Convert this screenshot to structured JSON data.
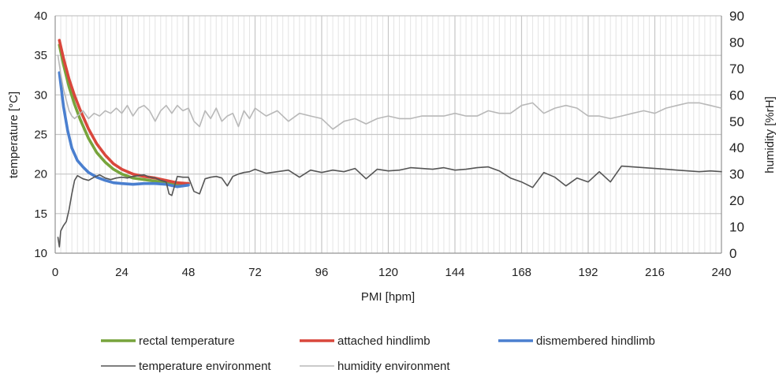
{
  "chart_data": {
    "type": "line",
    "xlabel": "PMI [hpm]",
    "ylabel": "temperature [°C]",
    "y2label": "humidity [%rH]",
    "xlim": [
      0,
      240
    ],
    "ylim": [
      10,
      40
    ],
    "y2lim": [
      0,
      90
    ],
    "xticks": [
      0,
      24,
      48,
      72,
      96,
      120,
      144,
      168,
      192,
      216,
      240
    ],
    "yticks": [
      10,
      15,
      20,
      25,
      30,
      35,
      40
    ],
    "y2ticks": [
      0,
      10,
      20,
      30,
      40,
      50,
      60,
      70,
      80,
      90
    ],
    "grid": "major gridlines plus dense minor vertical gridlines",
    "legend_position": "bottom",
    "series": [
      {
        "name": "rectal temperature",
        "color": "#77a43c",
        "axis": "left",
        "x": [
          1.5,
          3,
          5,
          7,
          9,
          12,
          15,
          18,
          21,
          24,
          28,
          32,
          36,
          40,
          44,
          48
        ],
        "y": [
          36.3,
          33.8,
          31.0,
          28.8,
          26.9,
          24.5,
          22.7,
          21.5,
          20.6,
          20.0,
          19.5,
          19.3,
          19.1,
          18.9,
          18.7,
          18.8
        ]
      },
      {
        "name": "attached hindlimb",
        "color": "#d9473c",
        "axis": "left",
        "x": [
          1.5,
          3,
          5,
          7,
          9,
          12,
          15,
          18,
          21,
          24,
          28,
          32,
          36,
          40,
          44,
          48
        ],
        "y": [
          36.9,
          34.6,
          32.0,
          29.9,
          28.1,
          25.7,
          23.8,
          22.4,
          21.3,
          20.6,
          20.0,
          19.7,
          19.5,
          19.2,
          18.9,
          18.8
        ]
      },
      {
        "name": "dismembered hindlimb",
        "color": "#4a7fcf",
        "axis": "left",
        "x": [
          1.5,
          3,
          4.5,
          6,
          8,
          10,
          12,
          15,
          18,
          21,
          24,
          28,
          32,
          36,
          40,
          44,
          48
        ],
        "y": [
          32.8,
          28.5,
          25.5,
          23.3,
          21.7,
          20.9,
          20.2,
          19.6,
          19.2,
          18.9,
          18.8,
          18.7,
          18.8,
          18.8,
          18.7,
          18.4,
          18.6
        ]
      },
      {
        "name": "temperature environment",
        "color": "#555555",
        "axis": "left",
        "x": [
          1,
          1.5,
          2,
          3,
          4,
          5,
          6,
          7,
          8,
          10,
          12,
          14,
          16,
          18,
          20,
          22,
          24,
          26,
          28,
          30,
          32,
          34,
          36,
          38,
          40,
          41,
          42,
          43,
          44,
          46,
          48,
          50,
          52,
          54,
          56,
          58,
          60,
          62,
          64,
          66,
          68,
          70,
          72,
          76,
          80,
          84,
          88,
          92,
          96,
          100,
          104,
          108,
          112,
          116,
          120,
          124,
          128,
          132,
          136,
          140,
          144,
          148,
          152,
          156,
          160,
          164,
          168,
          172,
          176,
          180,
          184,
          188,
          192,
          196,
          200,
          204,
          208,
          212,
          216,
          220,
          224,
          228,
          232,
          236,
          240
        ],
        "y": [
          12.0,
          10.8,
          12.8,
          13.5,
          14.0,
          15.5,
          17.5,
          19.2,
          19.8,
          19.4,
          19.2,
          19.6,
          19.9,
          19.5,
          19.3,
          19.5,
          19.6,
          19.5,
          19.7,
          19.8,
          19.9,
          19.6,
          19.5,
          19.2,
          19.0,
          17.5,
          17.3,
          18.5,
          19.7,
          19.6,
          19.6,
          17.8,
          17.5,
          19.4,
          19.6,
          19.7,
          19.5,
          18.5,
          19.7,
          20.0,
          20.2,
          20.3,
          20.6,
          20.1,
          20.3,
          20.5,
          19.6,
          20.5,
          20.2,
          20.5,
          20.3,
          20.7,
          19.4,
          20.6,
          20.4,
          20.5,
          20.8,
          20.7,
          20.6,
          20.8,
          20.5,
          20.6,
          20.8,
          20.9,
          20.4,
          19.5,
          19.0,
          18.3,
          20.2,
          19.6,
          18.5,
          19.5,
          19.0,
          20.3,
          19.0,
          21.0,
          20.9,
          20.8,
          20.7,
          20.6,
          20.5,
          20.4,
          20.3,
          20.4,
          20.3
        ]
      },
      {
        "name": "humidity environment",
        "color": "#b8b8b8",
        "axis": "right",
        "x": [
          1,
          2,
          3,
          4,
          5,
          6,
          7,
          8,
          10,
          12,
          14,
          16,
          18,
          20,
          22,
          24,
          26,
          28,
          30,
          32,
          34,
          36,
          38,
          40,
          42,
          44,
          46,
          48,
          50,
          52,
          54,
          56,
          58,
          60,
          62,
          64,
          66,
          68,
          70,
          72,
          76,
          80,
          84,
          88,
          92,
          96,
          100,
          104,
          108,
          112,
          116,
          120,
          124,
          128,
          132,
          136,
          140,
          144,
          148,
          152,
          156,
          160,
          164,
          168,
          172,
          176,
          180,
          184,
          188,
          192,
          196,
          200,
          204,
          208,
          212,
          216,
          220,
          224,
          228,
          232,
          236,
          240
        ],
        "y": [
          75,
          68,
          62,
          58,
          54,
          52,
          51,
          52,
          54,
          51,
          53,
          52,
          54,
          53,
          55,
          53,
          56,
          52,
          55,
          56,
          54,
          50,
          54,
          56,
          53,
          56,
          54,
          55,
          50,
          48,
          54,
          51,
          55,
          50,
          52,
          53,
          48,
          54,
          51,
          55,
          52,
          54,
          50,
          53,
          52,
          51,
          47,
          50,
          51,
          49,
          51,
          52,
          51,
          51,
          52,
          52,
          52,
          53,
          52,
          52,
          54,
          53,
          53,
          56,
          57,
          53,
          55,
          56,
          55,
          52,
          52,
          51,
          52,
          53,
          54,
          53,
          55,
          56,
          57,
          57,
          56,
          55
        ]
      }
    ]
  }
}
